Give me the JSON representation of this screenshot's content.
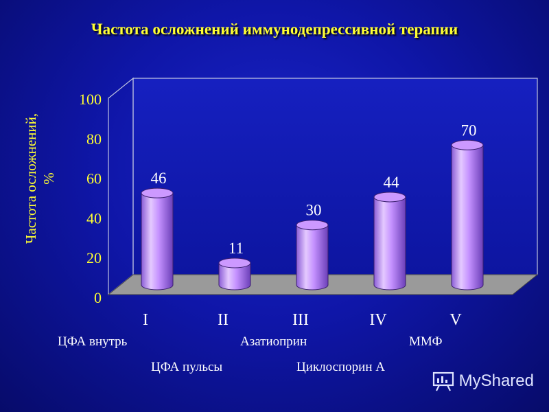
{
  "title": "Частота осложнений иммунодепрессивной терапии",
  "chart_data": {
    "type": "bar",
    "categories": [
      "I",
      "II",
      "III",
      "IV",
      "V"
    ],
    "values": [
      46,
      11,
      30,
      44,
      70
    ],
    "data_labels": [
      "46",
      "11",
      "30",
      "44",
      "70"
    ],
    "ylabel_line1": "Частота осложнений,",
    "ylabel_line2": "%",
    "ylim": [
      0,
      100
    ],
    "yticks": [
      0,
      20,
      40,
      60,
      80,
      100
    ],
    "grid": false,
    "bar_style": "3d-cylinder",
    "colors": {
      "bar": "#cc99ff",
      "floor": "#9a9a9a",
      "axis_text": "#ffff33",
      "category_text": "#ffffff"
    }
  },
  "drug_labels": {
    "i": "ЦФА внутрь",
    "ii": "ЦФА пульсы",
    "iii": "Азатиоприн",
    "iv": "Циклоспорин А",
    "v": "ММФ"
  },
  "watermark": "MyShared"
}
